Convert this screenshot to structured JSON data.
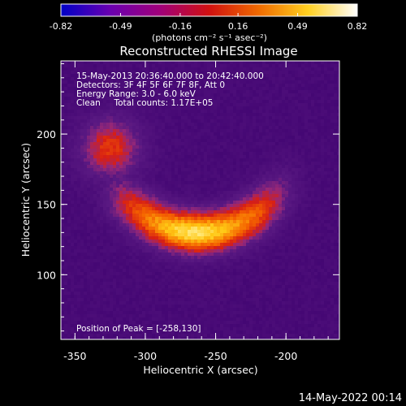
{
  "colorbar": {
    "ticks": [
      "-0.82",
      "-0.49",
      "-0.16",
      "0.16",
      "0.49",
      "0.82"
    ],
    "tick_values": [
      -0.82,
      -0.49,
      -0.16,
      0.16,
      0.49,
      0.82
    ],
    "range": [
      -0.82,
      0.82
    ],
    "unit_label": "(photons cm⁻² s⁻¹ asec⁻²)",
    "colors": [
      "#0000c8",
      "#6a00b0",
      "#a0007a",
      "#d01010",
      "#f06a00",
      "#ffd020",
      "#ffffff"
    ]
  },
  "chart_data": {
    "type": "heatmap",
    "title": "Reconstructed RHESSI Image",
    "annotations": [
      "15-May-2013 20:36:40.000 to 20:42:40.000",
      "Detectors: 3F 4F 5F 6F 7F 8F, Att 0",
      "Energy Range: 3.0 - 6.0 keV",
      "Clean     Total counts: 1.17E+05"
    ],
    "peak_label": "Position of Peak = [-258,130]",
    "peak": [
      -258,
      130
    ],
    "xlabel": "Heliocentric X (arcsec)",
    "ylabel": "Heliocentric Y (arcsec)",
    "xlim": [
      -360,
      -162
    ],
    "ylim": [
      54,
      252
    ],
    "x_ticks": [
      "-350",
      "-300",
      "-250",
      "-200"
    ],
    "x_tick_values": [
      -350,
      -300,
      -250,
      -200
    ],
    "y_ticks": [
      "100",
      "150",
      "200"
    ],
    "y_tick_values": [
      100,
      150,
      200
    ],
    "arc_center": [
      -262,
      197
    ],
    "arc_radius": 67,
    "arc_source_width": 15
  },
  "footer_date": "14-May-2022 00:14"
}
